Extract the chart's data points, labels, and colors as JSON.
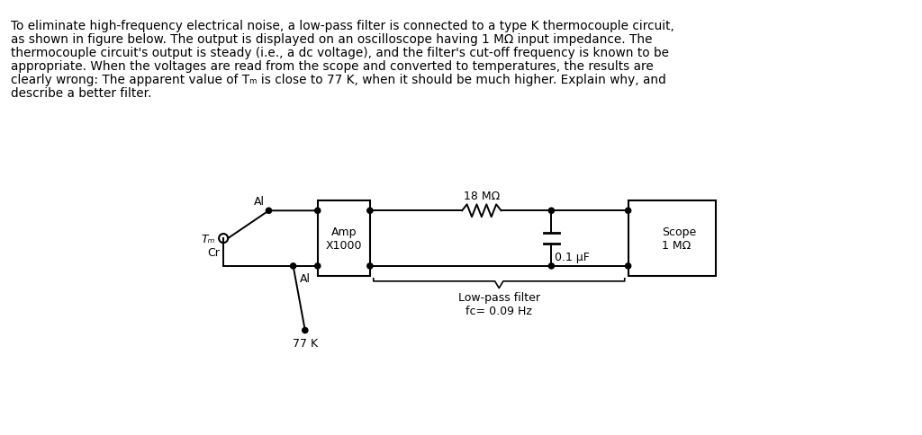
{
  "background_color": "#ffffff",
  "text_color": "#000000",
  "paragraph_lines": [
    "To eliminate high-frequency electrical noise, a low-pass filter is connected to a type K thermocouple circuit,",
    "as shown in figure below. The output is displayed on an oscilloscope having 1 MΩ input impedance. The",
    "thermocouple circuit's output is steady (i.e., a dc voltage), and the filter's cut-off frequency is known to be",
    "appropriate. When the voltages are read from the scope and converted to temperatures, the results are",
    "clearly wrong: The apparent value of Tₘ is close to 77 K, when it should be much higher. Explain why, and",
    "describe a better filter."
  ],
  "diagram": {
    "Tm_label": "Tₘ",
    "Al_label1": "Al",
    "Al_label2": "Al",
    "Cr_label": "Cr",
    "node_77K": "77 K",
    "amp_label": "Amp\nX1000",
    "resistor_label": "18 MΩ",
    "capacitor_label": "0.1 μF",
    "filter_label": "Low-pass filter\nfᴄ= 0.09 Hz",
    "scope_label": "Scope\n1 MΩ"
  }
}
